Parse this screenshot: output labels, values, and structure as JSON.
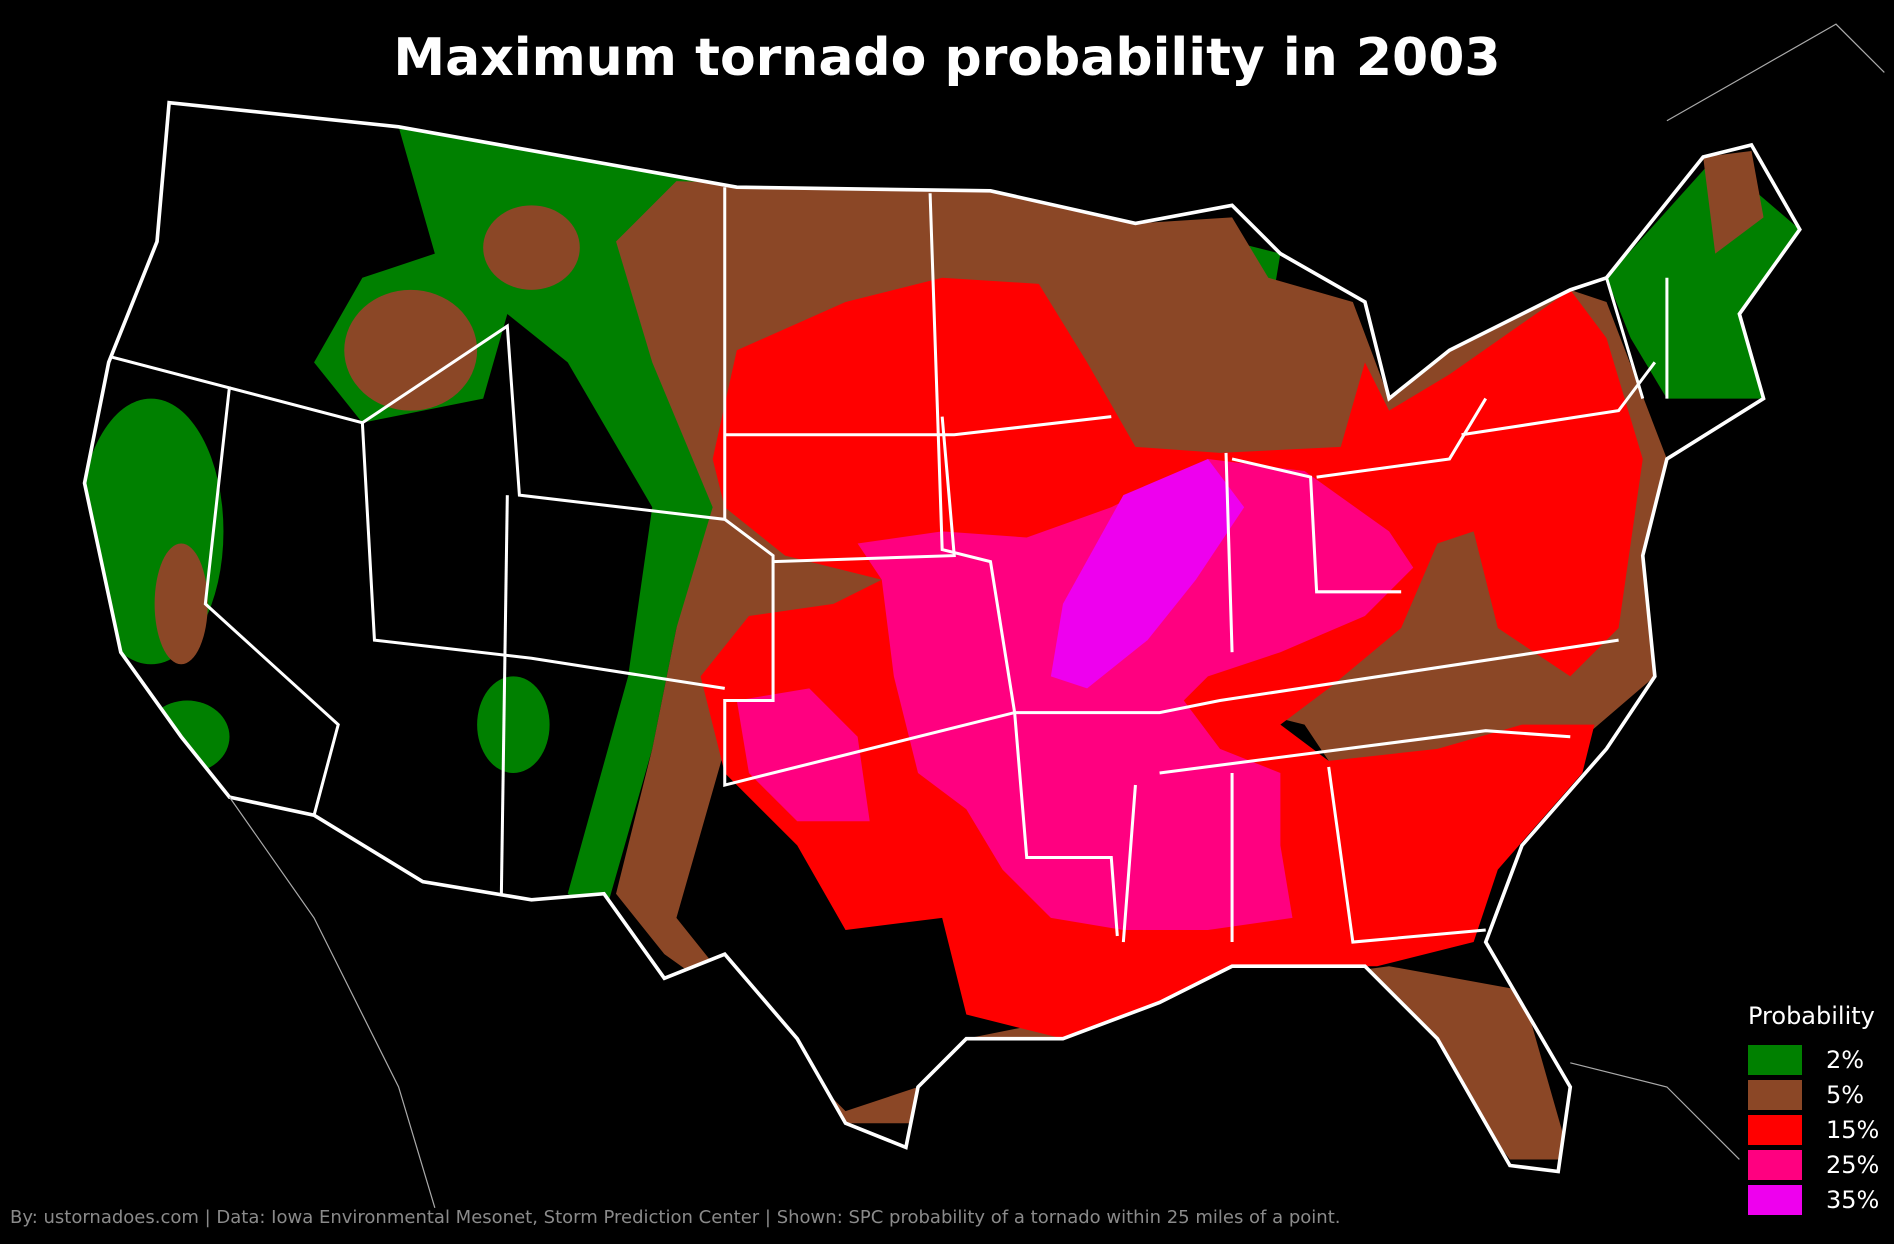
{
  "title": "Maximum tornado probability in 2003",
  "footer": "By: ustornadoes.com | Data: Iowa Environmental Mesonet, Storm Prediction Center | Shown: SPC probability of a tornado within 25 miles of a point.",
  "legend": {
    "title": "Probability",
    "items": [
      {
        "label": "2%",
        "color": "#008000"
      },
      {
        "label": "5%",
        "color": "#8b4726"
      },
      {
        "label": "15%",
        "color": "#ff0000"
      },
      {
        "label": "25%",
        "color": "#ff0080"
      },
      {
        "label": "35%",
        "color": "#ee00ee"
      }
    ]
  }
}
